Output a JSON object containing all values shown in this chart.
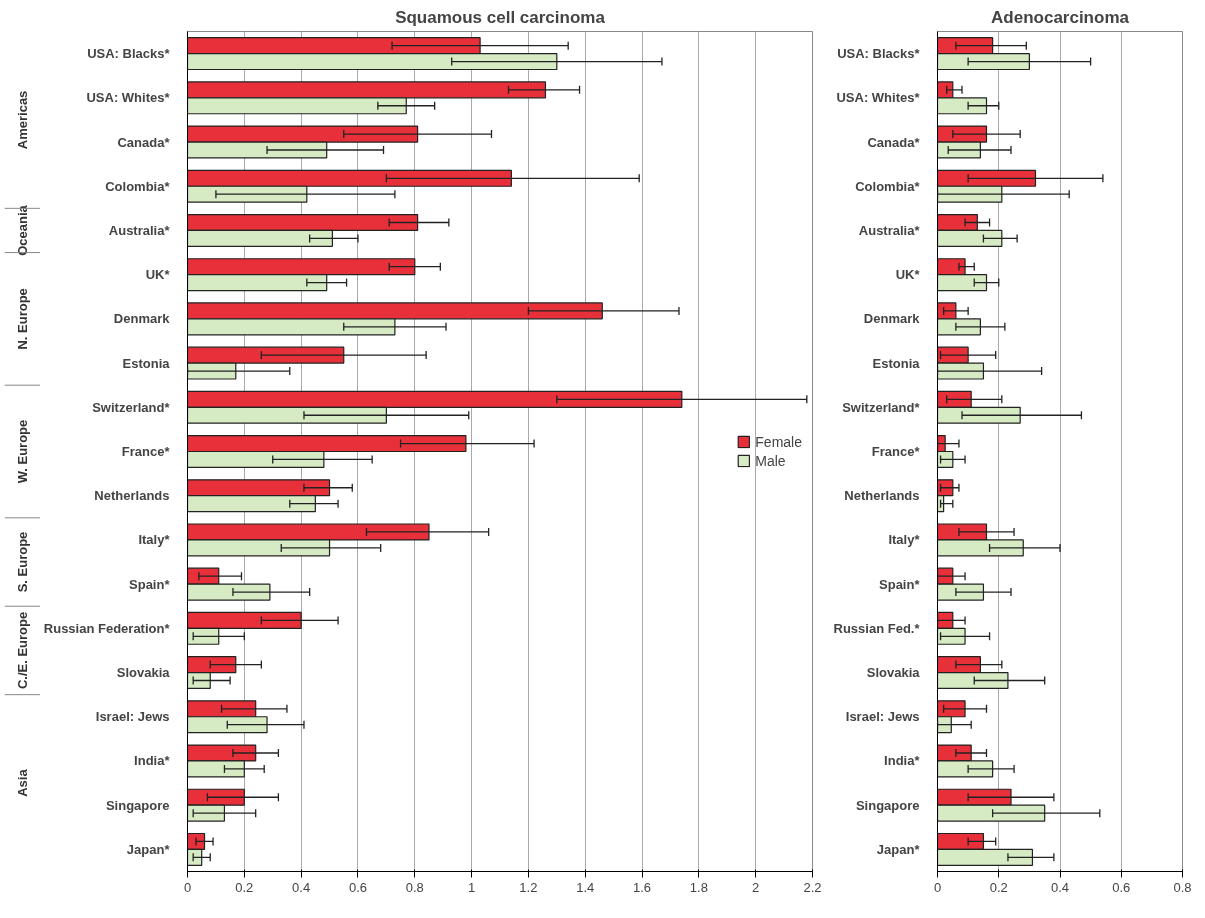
{
  "chart_data": [
    {
      "type": "bar",
      "orientation": "horizontal",
      "title": "Squamous cell carcinoma",
      "categories": [
        "USA: Blacks*",
        "USA: Whites*",
        "Canada*",
        "Colombia*",
        "Australia*",
        "UK*",
        "Denmark",
        "Estonia",
        "Switzerland*",
        "France*",
        "Netherlands",
        "Italy*",
        "Spain*",
        "Russian Federation*",
        "Slovakia",
        "Israel: Jews",
        "India*",
        "Singapore",
        "Japan*"
      ],
      "series": [
        {
          "name": "Female",
          "color": "#e8303a",
          "values": [
            1.03,
            1.26,
            0.81,
            1.14,
            0.81,
            0.8,
            1.46,
            0.55,
            1.74,
            0.98,
            0.5,
            0.85,
            0.11,
            0.4,
            0.17,
            0.24,
            0.24,
            0.2,
            0.06
          ],
          "errors": [
            [
              0.72,
              1.34
            ],
            [
              1.13,
              1.38
            ],
            [
              0.55,
              1.07
            ],
            [
              0.7,
              1.59
            ],
            [
              0.71,
              0.92
            ],
            [
              0.71,
              0.89
            ],
            [
              1.2,
              1.73
            ],
            [
              0.26,
              0.84
            ],
            [
              1.3,
              2.18
            ],
            [
              0.75,
              1.22
            ],
            [
              0.41,
              0.58
            ],
            [
              0.63,
              1.06
            ],
            [
              0.04,
              0.19
            ],
            [
              0.26,
              0.53
            ],
            [
              0.08,
              0.26
            ],
            [
              0.12,
              0.35
            ],
            [
              0.16,
              0.32
            ],
            [
              0.07,
              0.32
            ],
            [
              0.03,
              0.09
            ]
          ]
        },
        {
          "name": "Male",
          "color": "#d6eac4",
          "values": [
            1.3,
            0.77,
            0.49,
            0.42,
            0.51,
            0.49,
            0.73,
            0.17,
            0.7,
            0.48,
            0.45,
            0.5,
            0.29,
            0.11,
            0.08,
            0.28,
            0.2,
            0.13,
            0.05
          ],
          "errors": [
            [
              0.93,
              1.67
            ],
            [
              0.67,
              0.87
            ],
            [
              0.28,
              0.69
            ],
            [
              0.1,
              0.73
            ],
            [
              0.43,
              0.6
            ],
            [
              0.42,
              0.56
            ],
            [
              0.55,
              0.91
            ],
            [
              0.0,
              0.36
            ],
            [
              0.41,
              0.99
            ],
            [
              0.3,
              0.65
            ],
            [
              0.36,
              0.53
            ],
            [
              0.33,
              0.68
            ],
            [
              0.16,
              0.43
            ],
            [
              0.02,
              0.2
            ],
            [
              0.02,
              0.15
            ],
            [
              0.14,
              0.41
            ],
            [
              0.13,
              0.27
            ],
            [
              0.02,
              0.24
            ],
            [
              0.02,
              0.08
            ]
          ]
        }
      ],
      "xlim": [
        0,
        2.2
      ],
      "xticks": [
        0,
        0.2,
        0.4,
        0.6,
        0.8,
        1,
        1.2,
        1.4,
        1.6,
        1.8,
        2,
        2.2
      ],
      "grid": "x",
      "legend": "right",
      "annotations": [
        "Americas",
        "Oceania",
        "N. Europe",
        "W. Europe",
        "S. Europe",
        "C./E. Europe",
        "Asia"
      ]
    },
    {
      "type": "bar",
      "orientation": "horizontal",
      "title": "Adenocarcinoma",
      "categories": [
        "USA: Blacks*",
        "USA: Whites*",
        "Canada*",
        "Colombia*",
        "Australia*",
        "UK*",
        "Denmark",
        "Estonia",
        "Switzerland*",
        "France*",
        "Netherlands",
        "Italy*",
        "Spain*",
        "Russian Fed.*",
        "Slovakia",
        "Israel: Jews",
        "India*",
        "Singapore",
        "Japan*"
      ],
      "series": [
        {
          "color": "#e8303a",
          "values": [
            0.18,
            0.05,
            0.16,
            0.32,
            0.13,
            0.09,
            0.06,
            0.1,
            0.11,
            0.025,
            0.05,
            0.16,
            0.05,
            0.05,
            0.14,
            0.09,
            0.11,
            0.24,
            0.15
          ],
          "errors": [
            [
              0.06,
              0.29
            ],
            [
              0.03,
              0.08
            ],
            [
              0.05,
              0.27
            ],
            [
              0.1,
              0.54
            ],
            [
              0.09,
              0.17
            ],
            [
              0.07,
              0.12
            ],
            [
              0.02,
              0.1
            ],
            [
              0.01,
              0.19
            ],
            [
              0.03,
              0.21
            ],
            [
              0.0,
              0.07
            ],
            [
              0.01,
              0.07
            ],
            [
              0.07,
              0.25
            ],
            [
              0.0,
              0.09
            ],
            [
              0.0,
              0.09
            ],
            [
              0.06,
              0.21
            ],
            [
              0.02,
              0.16
            ],
            [
              0.06,
              0.16
            ],
            [
              0.1,
              0.38
            ],
            [
              0.1,
              0.19
            ]
          ]
        },
        {
          "color": "#d6eac4",
          "values": [
            0.3,
            0.16,
            0.14,
            0.21,
            0.21,
            0.16,
            0.14,
            0.15,
            0.27,
            0.05,
            0.02,
            0.28,
            0.15,
            0.09,
            0.23,
            0.045,
            0.18,
            0.35,
            0.31
          ],
          "errors": [
            [
              0.1,
              0.5
            ],
            [
              0.1,
              0.2
            ],
            [
              0.035,
              0.24
            ],
            [
              0.0,
              0.43
            ],
            [
              0.15,
              0.26
            ],
            [
              0.12,
              0.2
            ],
            [
              0.06,
              0.22
            ],
            [
              0.0,
              0.34
            ],
            [
              0.08,
              0.47
            ],
            [
              0.01,
              0.09
            ],
            [
              0.01,
              0.05
            ],
            [
              0.17,
              0.4
            ],
            [
              0.06,
              0.24
            ],
            [
              0.01,
              0.17
            ],
            [
              0.12,
              0.35
            ],
            [
              0.0,
              0.11
            ],
            [
              0.1,
              0.25
            ],
            [
              0.18,
              0.53
            ],
            [
              0.23,
              0.38
            ]
          ]
        }
      ],
      "xlim": [
        0,
        0.8
      ],
      "xticks": [
        0,
        0.2,
        0.4,
        0.6,
        0.8
      ],
      "grid": "x"
    }
  ]
}
